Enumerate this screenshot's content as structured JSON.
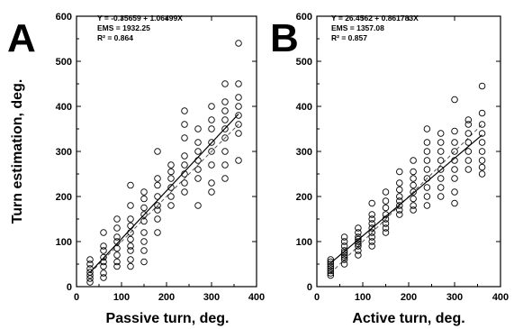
{
  "chart_data": [
    {
      "type": "scatter",
      "panel_letter": "A",
      "xlabel": "Passive turn, deg.",
      "ylabel": "Turn estimation, deg.",
      "xlim": [
        0,
        400
      ],
      "ylim": [
        0,
        600
      ],
      "xticks": [
        "0",
        "100",
        "200",
        "300",
        "400"
      ],
      "yticks": [
        "0",
        "100",
        "200",
        "300",
        "400",
        "500",
        "600"
      ],
      "annotations": [
        "Y = -0.35659 + 1.06499X",
        "EMS = 1932.25",
        "R² = 0.864"
      ],
      "regression": {
        "intercept": -0.35659,
        "slope": 1.06499,
        "x_range": [
          30,
          360
        ]
      },
      "identity_line": {
        "x_range": [
          30,
          360
        ]
      },
      "points": [
        [
          30,
          10
        ],
        [
          30,
          18
        ],
        [
          30,
          25
        ],
        [
          30,
          32
        ],
        [
          30,
          40
        ],
        [
          30,
          50
        ],
        [
          30,
          60
        ],
        [
          60,
          20
        ],
        [
          60,
          30
        ],
        [
          60,
          45
        ],
        [
          60,
          55
        ],
        [
          60,
          65
        ],
        [
          60,
          80
        ],
        [
          60,
          90
        ],
        [
          60,
          120
        ],
        [
          90,
          45
        ],
        [
          90,
          55
        ],
        [
          90,
          70
        ],
        [
          90,
          85
        ],
        [
          90,
          100
        ],
        [
          90,
          110
        ],
        [
          90,
          130
        ],
        [
          90,
          150
        ],
        [
          120,
          45
        ],
        [
          120,
          60
        ],
        [
          120,
          80
        ],
        [
          120,
          90
        ],
        [
          120,
          105
        ],
        [
          120,
          120
        ],
        [
          120,
          135
        ],
        [
          120,
          150
        ],
        [
          120,
          180
        ],
        [
          120,
          225
        ],
        [
          150,
          55
        ],
        [
          150,
          80
        ],
        [
          150,
          100
        ],
        [
          150,
          120
        ],
        [
          150,
          145
        ],
        [
          150,
          160
        ],
        [
          150,
          175
        ],
        [
          150,
          195
        ],
        [
          150,
          210
        ],
        [
          180,
          120
        ],
        [
          180,
          150
        ],
        [
          180,
          170
        ],
        [
          180,
          180
        ],
        [
          180,
          200
        ],
        [
          180,
          225
        ],
        [
          180,
          240
        ],
        [
          180,
          300
        ],
        [
          210,
          180
        ],
        [
          210,
          200
        ],
        [
          210,
          220
        ],
        [
          210,
          240
        ],
        [
          210,
          255
        ],
        [
          210,
          270
        ],
        [
          240,
          210
        ],
        [
          240,
          230
        ],
        [
          240,
          250
        ],
        [
          240,
          270
        ],
        [
          240,
          290
        ],
        [
          240,
          330
        ],
        [
          240,
          360
        ],
        [
          240,
          390
        ],
        [
          270,
          180
        ],
        [
          270,
          240
        ],
        [
          270,
          260
        ],
        [
          270,
          280
        ],
        [
          270,
          300
        ],
        [
          270,
          320
        ],
        [
          270,
          350
        ],
        [
          300,
          210
        ],
        [
          300,
          230
        ],
        [
          300,
          270
        ],
        [
          300,
          300
        ],
        [
          300,
          320
        ],
        [
          300,
          350
        ],
        [
          300,
          370
        ],
        [
          300,
          400
        ],
        [
          330,
          240
        ],
        [
          330,
          270
        ],
        [
          330,
          300
        ],
        [
          330,
          330
        ],
        [
          330,
          350
        ],
        [
          330,
          370
        ],
        [
          330,
          390
        ],
        [
          330,
          410
        ],
        [
          330,
          450
        ],
        [
          360,
          280
        ],
        [
          360,
          340
        ],
        [
          360,
          360
        ],
        [
          360,
          380
        ],
        [
          360,
          400
        ],
        [
          360,
          420
        ],
        [
          360,
          450
        ],
        [
          360,
          540
        ]
      ]
    },
    {
      "type": "scatter",
      "panel_letter": "B",
      "xlabel": "Active turn, deg.",
      "ylabel": "",
      "xlim": [
        0,
        400
      ],
      "ylim": [
        0,
        600
      ],
      "xticks": [
        "0",
        "100",
        "200",
        "300",
        "400"
      ],
      "yticks": [
        "0",
        "100",
        "200",
        "300",
        "400",
        "500",
        "600"
      ],
      "annotations": [
        "Y = 26.4562 + 0.861783X",
        "EMS = 1357.08",
        "R² = 0.857"
      ],
      "regression": {
        "intercept": 26.4562,
        "slope": 0.861783,
        "x_range": [
          30,
          360
        ]
      },
      "identity_line": {
        "x_range": [
          30,
          360
        ]
      },
      "points": [
        [
          30,
          25
        ],
        [
          30,
          30
        ],
        [
          30,
          35
        ],
        [
          30,
          40
        ],
        [
          30,
          45
        ],
        [
          30,
          50
        ],
        [
          30,
          55
        ],
        [
          30,
          60
        ],
        [
          60,
          50
        ],
        [
          60,
          60
        ],
        [
          60,
          65
        ],
        [
          60,
          70
        ],
        [
          60,
          75
        ],
        [
          60,
          80
        ],
        [
          60,
          90
        ],
        [
          60,
          100
        ],
        [
          60,
          110
        ],
        [
          90,
          70
        ],
        [
          90,
          80
        ],
        [
          90,
          90
        ],
        [
          90,
          95
        ],
        [
          90,
          100
        ],
        [
          90,
          105
        ],
        [
          90,
          110
        ],
        [
          90,
          120
        ],
        [
          90,
          130
        ],
        [
          120,
          90
        ],
        [
          120,
          100
        ],
        [
          120,
          110
        ],
        [
          120,
          120
        ],
        [
          120,
          130
        ],
        [
          120,
          140
        ],
        [
          120,
          150
        ],
        [
          120,
          160
        ],
        [
          120,
          185
        ],
        [
          150,
          120
        ],
        [
          150,
          130
        ],
        [
          150,
          140
        ],
        [
          150,
          150
        ],
        [
          150,
          160
        ],
        [
          150,
          175
        ],
        [
          150,
          190
        ],
        [
          150,
          210
        ],
        [
          180,
          160
        ],
        [
          180,
          170
        ],
        [
          180,
          180
        ],
        [
          180,
          190
        ],
        [
          180,
          200
        ],
        [
          180,
          215
        ],
        [
          180,
          230
        ],
        [
          180,
          255
        ],
        [
          210,
          170
        ],
        [
          210,
          180
        ],
        [
          210,
          195
        ],
        [
          210,
          210
        ],
        [
          210,
          225
        ],
        [
          210,
          240
        ],
        [
          210,
          255
        ],
        [
          210,
          280
        ],
        [
          240,
          180
        ],
        [
          240,
          200
        ],
        [
          240,
          220
        ],
        [
          240,
          240
        ],
        [
          240,
          260
        ],
        [
          240,
          280
        ],
        [
          240,
          300
        ],
        [
          240,
          320
        ],
        [
          240,
          350
        ],
        [
          270,
          200
        ],
        [
          270,
          220
        ],
        [
          270,
          240
        ],
        [
          270,
          260
        ],
        [
          270,
          280
        ],
        [
          270,
          300
        ],
        [
          270,
          320
        ],
        [
          270,
          340
        ],
        [
          300,
          185
        ],
        [
          300,
          210
        ],
        [
          300,
          240
        ],
        [
          300,
          260
        ],
        [
          300,
          280
        ],
        [
          300,
          300
        ],
        [
          300,
          320
        ],
        [
          300,
          345
        ],
        [
          300,
          415
        ],
        [
          330,
          260
        ],
        [
          330,
          280
        ],
        [
          330,
          300
        ],
        [
          330,
          320
        ],
        [
          330,
          340
        ],
        [
          330,
          360
        ],
        [
          330,
          370
        ],
        [
          360,
          250
        ],
        [
          360,
          265
        ],
        [
          360,
          280
        ],
        [
          360,
          300
        ],
        [
          360,
          320
        ],
        [
          360,
          340
        ],
        [
          360,
          360
        ],
        [
          360,
          385
        ],
        [
          360,
          445
        ]
      ]
    }
  ]
}
